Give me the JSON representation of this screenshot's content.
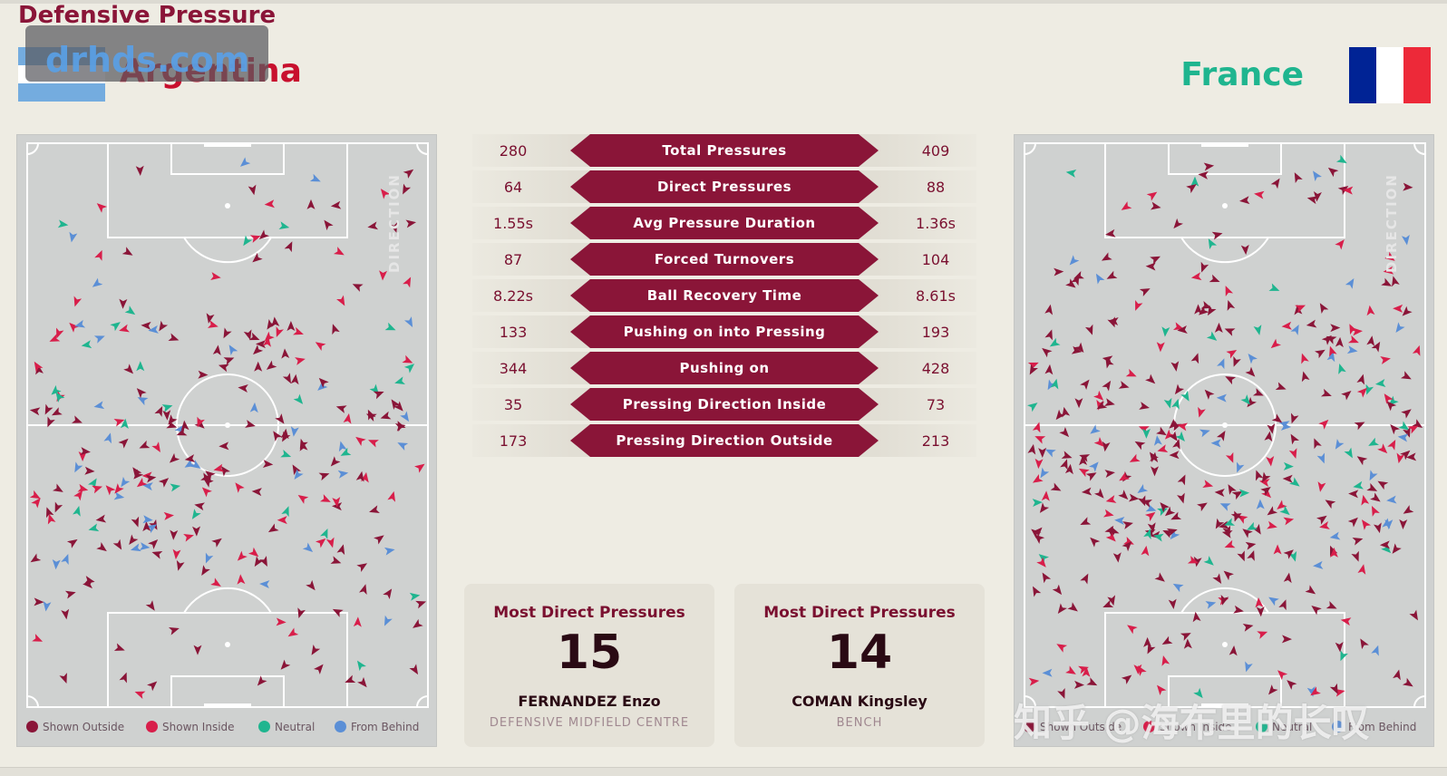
{
  "header": {
    "title": "Defensive Pressure",
    "watermark": "drhds.com",
    "left_team": "Argentina",
    "right_team": "France"
  },
  "colors": {
    "shown_outside": "#8a1538",
    "shown_inside": "#d81e4a",
    "neutral": "#1fb58f",
    "from_behind": "#5b8fd6",
    "accent": "#8a1538"
  },
  "pitch": {
    "direction_label": "DIRECTION",
    "legend": [
      {
        "label": "Shown Outside",
        "color": "#8a1538"
      },
      {
        "label": "Shown Inside",
        "color": "#d81e4a"
      },
      {
        "label": "Neutral",
        "color": "#1fb58f"
      },
      {
        "label": "From Behind",
        "color": "#5b8fd6"
      }
    ]
  },
  "stats": [
    {
      "label": "Total Pressures",
      "left": "280",
      "right": "409"
    },
    {
      "label": "Direct Pressures",
      "left": "64",
      "right": "88"
    },
    {
      "label": "Avg Pressure Duration",
      "left": "1.55s",
      "right": "1.36s"
    },
    {
      "label": "Forced Turnovers",
      "left": "87",
      "right": "104"
    },
    {
      "label": "Ball Recovery Time",
      "left": "8.22s",
      "right": "8.61s"
    },
    {
      "label": "Pushing on into Pressing",
      "left": "133",
      "right": "193"
    },
    {
      "label": "Pushing on",
      "left": "344",
      "right": "428"
    },
    {
      "label": "Pressing Direction Inside",
      "left": "35",
      "right": "73"
    },
    {
      "label": "Pressing Direction Outside",
      "left": "173",
      "right": "213"
    }
  ],
  "cards": [
    {
      "title": "Most Direct Pressures",
      "value": "15",
      "player": "FERNANDEZ Enzo",
      "position": "DEFENSIVE MIDFIELD CENTRE"
    },
    {
      "title": "Most Direct Pressures",
      "value": "14",
      "player": "COMAN Kingsley",
      "position": "BENCH"
    }
  ],
  "overlay_watermark": "知乎 @海布里的长叹"
}
